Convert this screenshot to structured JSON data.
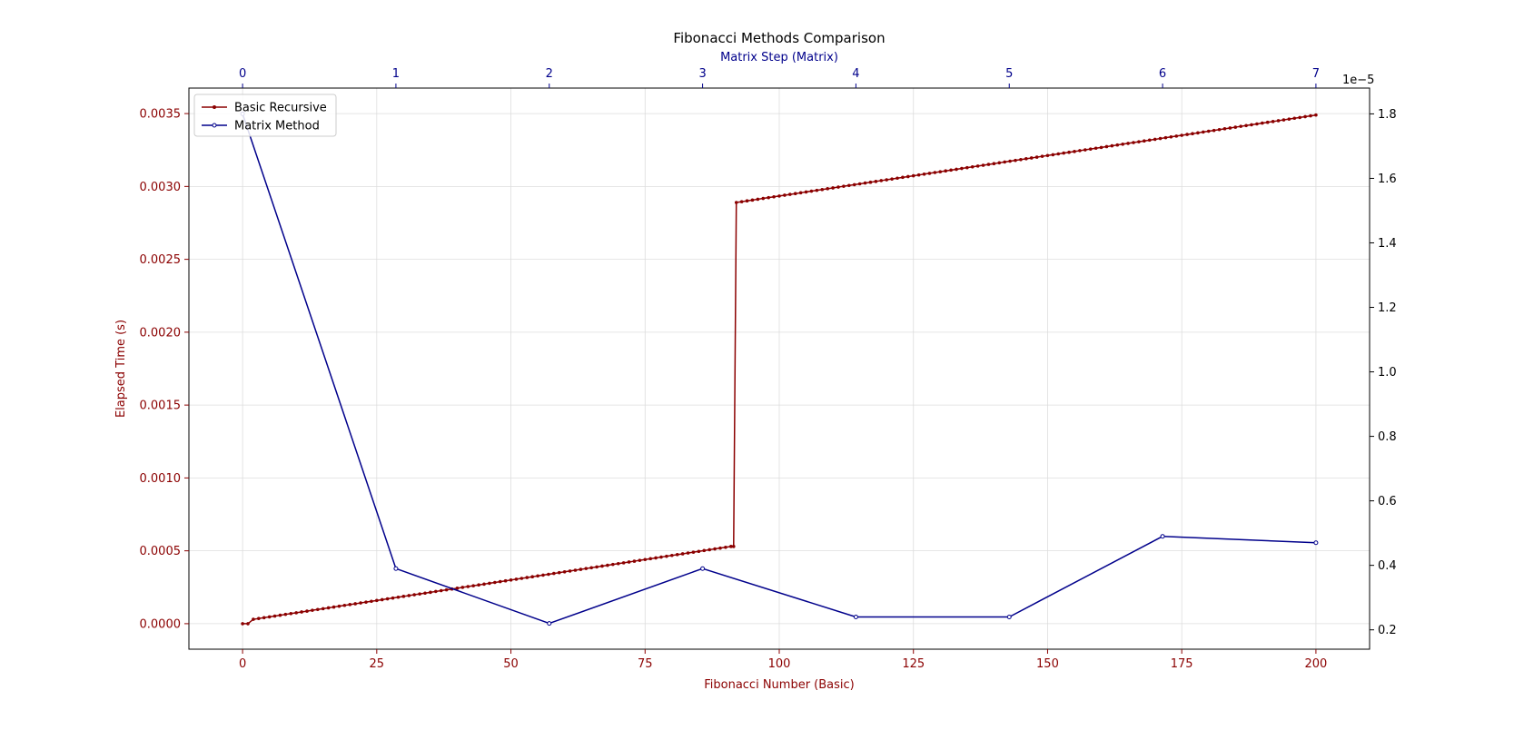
{
  "chart_data": {
    "type": "line",
    "title": "Fibonacci Methods Comparison",
    "xlabel": "Fibonacci Number (Basic)",
    "top_xlabel": "Matrix Step (Matrix)",
    "ylabel": "Elapsed Time (s)",
    "right_exponent": "1e−5",
    "xlim": [
      -10,
      210
    ],
    "ylim": [
      -0.000175,
      0.003675
    ],
    "top_xlim": [
      -0.35,
      7.35
    ],
    "right_ylim": [
      0.14,
      1.88
    ],
    "x_ticks": [
      0,
      25,
      50,
      75,
      100,
      125,
      150,
      175,
      200
    ],
    "y_ticks": [
      0.0,
      0.0005,
      0.001,
      0.0015,
      0.002,
      0.0025,
      0.003,
      0.0035
    ],
    "y_tick_labels": [
      "0.0000",
      "0.0005",
      "0.0010",
      "0.0015",
      "0.0020",
      "0.0025",
      "0.0030",
      "0.0035"
    ],
    "top_x_ticks": [
      0,
      1,
      2,
      3,
      4,
      5,
      6,
      7
    ],
    "right_y_ticks": [
      0.2,
      0.4,
      0.6,
      0.8,
      1.0,
      1.2,
      1.4,
      1.6,
      1.8
    ],
    "right_y_tick_labels": [
      "0.2",
      "0.4",
      "0.6",
      "0.8",
      "1.0",
      "1.2",
      "1.4",
      "1.6",
      "1.8"
    ],
    "grid": true,
    "legend_position": "top-left",
    "colors": {
      "basic": "#8b0000",
      "matrix": "#00008b",
      "axes": "#000000",
      "grid": "#dddddd"
    },
    "series": [
      {
        "name": "Basic Recursive",
        "axis": "bottom-left",
        "segments": [
          {
            "x_start": 0,
            "x_end": 1,
            "y_start": 0.0,
            "y_end": 0.0
          },
          {
            "x_start": 1,
            "x_end": 2,
            "y_start": 0.0,
            "y_end": 3e-05
          },
          {
            "x_start": 2,
            "x_end": 91,
            "y_start": 3e-05,
            "y_end": 0.00053
          },
          {
            "x_start": 91,
            "x_end": 91.5,
            "y_start": 0.00053,
            "y_end": 0.00053
          },
          {
            "x_start": 91.5,
            "x_end": 92,
            "y_start": 0.00053,
            "y_end": 0.00289
          },
          {
            "x_start": 92,
            "x_end": 200,
            "y_start": 0.00289,
            "y_end": 0.00349
          }
        ]
      },
      {
        "name": "Matrix Method",
        "axis": "top-right",
        "x": [
          0,
          1,
          2,
          3,
          4,
          5,
          6,
          7
        ],
        "y": [
          1.8,
          0.39,
          0.22,
          0.39,
          0.24,
          0.24,
          0.49,
          0.47
        ]
      }
    ]
  }
}
